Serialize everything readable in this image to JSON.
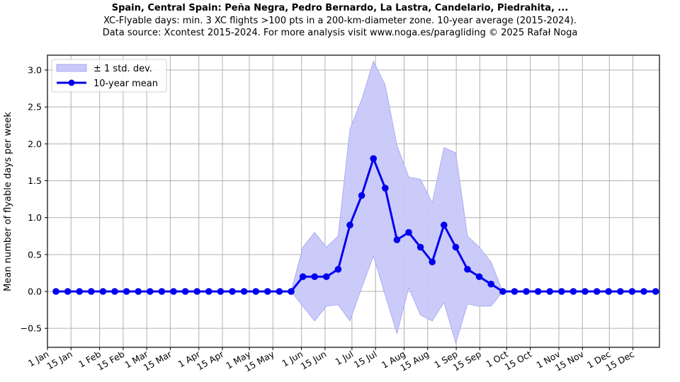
{
  "header": {
    "title": "Spain, Central Spain: Peña Negra, Pedro Bernardo, La Lastra, Candelario, Piedrahita, ...",
    "subtitle1": "XC-Flyable days: min. 3 XC flights >100 pts in a 200-km-diameter zone. 10-year average (2015-2024).",
    "subtitle2": "Data source: Xcontest 2015-2024. For more analysis visit www.noga.es/paragliding © 2025 Rafał Noga"
  },
  "colors": {
    "mean_line": "#0000ee",
    "std_fill": "#c8c8fa",
    "std_stroke": "#a0a0f0",
    "grid": "#b0b0b0"
  },
  "chart_data": {
    "type": "line",
    "title": "Spain, Central Spain: Peña Negra, Pedro Bernardo, La Lastra, Candelario, Piedrahita, ...",
    "xlabel": "",
    "ylabel": "Mean number of flyable days per week",
    "ylim": [
      -0.75,
      3.2
    ],
    "yticks": [
      -0.5,
      0.0,
      0.5,
      1.0,
      1.5,
      2.0,
      2.5,
      3.0
    ],
    "ytick_labels": [
      "−0.5",
      "0.0",
      "0.5",
      "1.0",
      "1.5",
      "2.0",
      "2.5",
      "3.0"
    ],
    "xticks": [
      "1 Jan",
      "15 Jan",
      "1 Feb",
      "15 Feb",
      "1 Mar",
      "15 Mar",
      "1 Apr",
      "15 Apr",
      "1 May",
      "15 May",
      "1 Jun",
      "15 Jun",
      "1 Jul",
      "15 Jul",
      "1 Aug",
      "15 Aug",
      "1 Sep",
      "15 Sep",
      "1 Oct",
      "15 Oct",
      "1 Nov",
      "15 Nov",
      "1 Dec",
      "15 Dec"
    ],
    "xtick_days": [
      1,
      15,
      32,
      46,
      60,
      74,
      91,
      105,
      121,
      135,
      152,
      166,
      182,
      196,
      213,
      227,
      244,
      258,
      274,
      288,
      305,
      319,
      335,
      349
    ],
    "grid": true,
    "legend_position": "upper left",
    "legend": [
      "± 1 std. dev.",
      "10-year mean"
    ],
    "x_week_index": [
      0,
      1,
      2,
      3,
      4,
      5,
      6,
      7,
      8,
      9,
      10,
      11,
      12,
      13,
      14,
      15,
      16,
      17,
      18,
      19,
      20,
      21,
      22,
      23,
      24,
      25,
      26,
      27,
      28,
      29,
      30,
      31,
      32,
      33,
      34,
      35,
      36,
      37,
      38,
      39,
      40,
      41,
      42,
      43,
      44,
      45,
      46,
      47,
      48,
      49,
      50,
      51
    ],
    "series": [
      {
        "name": "10-year mean",
        "values": [
          0,
          0,
          0,
          0,
          0,
          0,
          0,
          0,
          0,
          0,
          0,
          0,
          0,
          0,
          0,
          0,
          0,
          0,
          0,
          0,
          0,
          0.2,
          0.2,
          0.2,
          0.3,
          0.9,
          1.3,
          1.8,
          1.4,
          0.7,
          0.8,
          0.6,
          0.4,
          0.9,
          0.6,
          0.3,
          0.2,
          0.1,
          0,
          0,
          0,
          0,
          0,
          0,
          0,
          0,
          0,
          0,
          0,
          0,
          0,
          0
        ]
      },
      {
        "name": "+1 std. dev. (upper)",
        "values": [
          0,
          0,
          0,
          0,
          0,
          0,
          0,
          0,
          0,
          0,
          0,
          0,
          0,
          0,
          0,
          0,
          0,
          0,
          0,
          0,
          0,
          0.6,
          0.8,
          0.6,
          0.75,
          2.2,
          2.6,
          3.12,
          2.8,
          1.98,
          1.55,
          1.52,
          1.2,
          1.95,
          1.88,
          0.75,
          0.6,
          0.4,
          0,
          0,
          0,
          0,
          0,
          0,
          0,
          0,
          0,
          0,
          0,
          0,
          0,
          0
        ]
      },
      {
        "name": "-1 std. dev. (lower)",
        "values": [
          0,
          0,
          0,
          0,
          0,
          0,
          0,
          0,
          0,
          0,
          0,
          0,
          0,
          0,
          0,
          0,
          0,
          0,
          0,
          0,
          0,
          -0.2,
          -0.4,
          -0.2,
          -0.18,
          -0.4,
          0.05,
          0.48,
          -0.05,
          -0.57,
          0.05,
          -0.32,
          -0.4,
          -0.15,
          -0.7,
          -0.17,
          -0.2,
          -0.2,
          0,
          0,
          0,
          0,
          0,
          0,
          0,
          0,
          0,
          0,
          0,
          0,
          0,
          0
        ]
      }
    ]
  },
  "plot": {
    "y_axis_label": "Mean number of flyable days per week",
    "legend": {
      "std_label": "± 1 std. dev.",
      "mean_label": "10-year mean"
    }
  }
}
